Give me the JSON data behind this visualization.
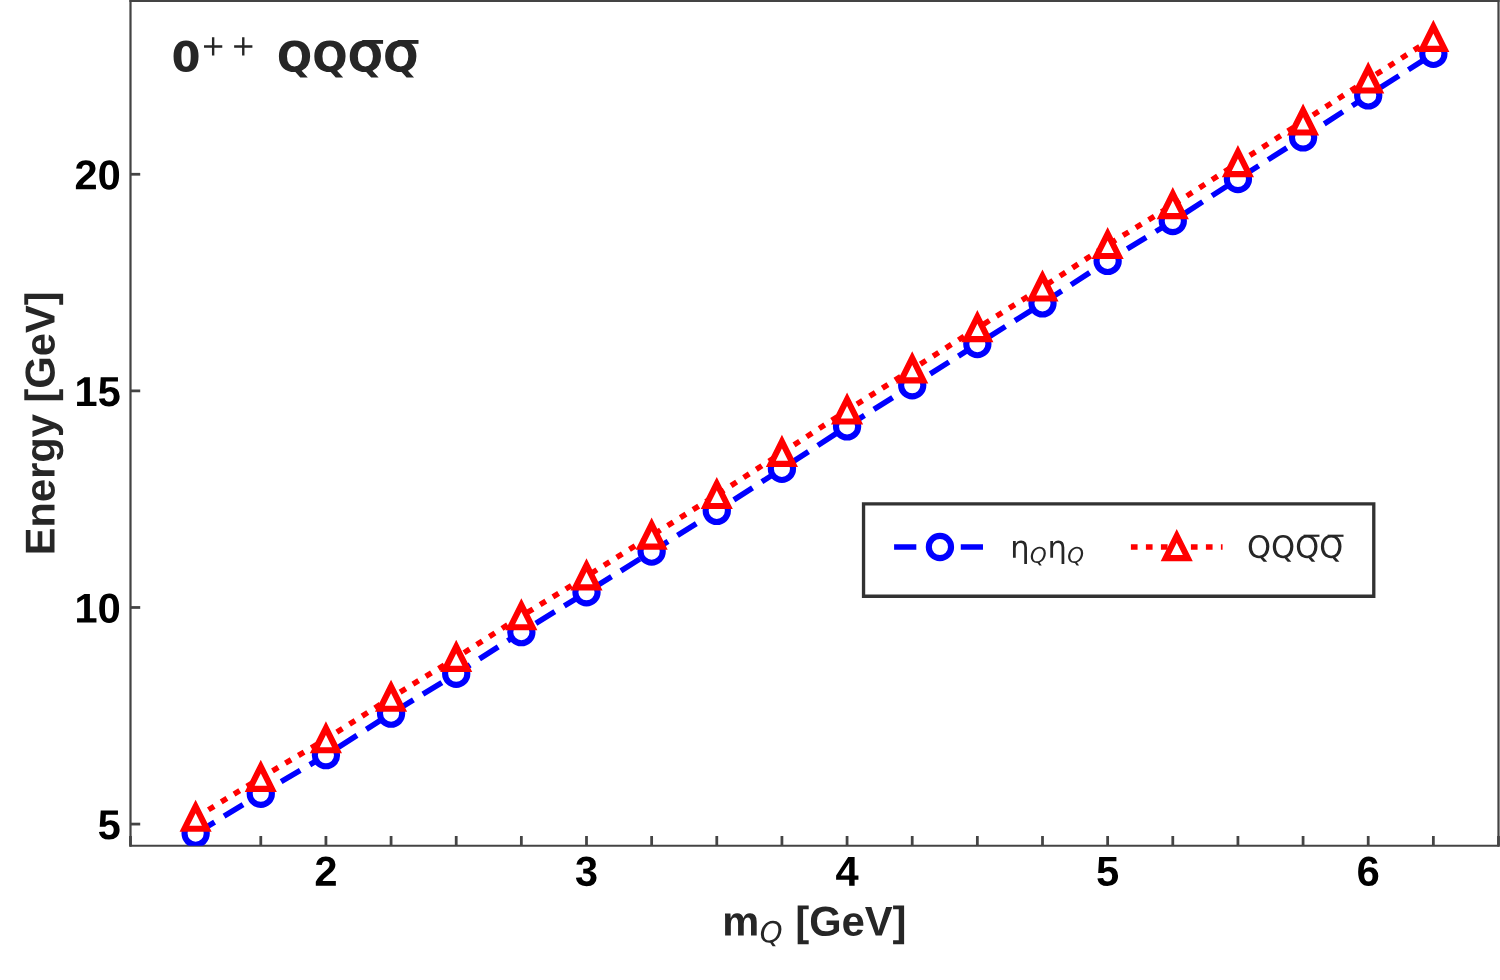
{
  "chart_data": {
    "type": "line",
    "xlabel": "m$_{Q}$ [GeV]",
    "ylabel": "Energy [GeV]",
    "annotations": [
      "0$^{++}$ QQQ̅Q̅"
    ],
    "x": [
      1.5,
      1.75,
      2,
      2.25,
      2.5,
      2.75,
      3,
      3.25,
      3.5,
      3.75,
      4,
      4.25,
      4.5,
      4.75,
      5,
      5.25,
      5.5,
      5.75,
      6,
      6.25
    ],
    "series": [
      {
        "name": "η$_{Q}$η$_{Q}$",
        "color": "#0000ff",
        "marker": "circle",
        "line_style": "dashed",
        "values": [
          4.78,
          5.7,
          6.59,
          7.55,
          8.47,
          9.43,
          10.35,
          11.29,
          12.23,
          13.2,
          14.18,
          15.13,
          16.08,
          17.02,
          18.0,
          18.92,
          19.89,
          20.85,
          21.82,
          22.78
        ]
      },
      {
        "name": "QQQ̅Q̅",
        "color": "#ff0000",
        "marker": "triangle",
        "line_style": "dotted",
        "values": [
          5.15,
          6.07,
          6.96,
          7.92,
          8.84,
          9.8,
          10.72,
          11.66,
          12.6,
          13.57,
          14.55,
          15.5,
          16.45,
          17.39,
          18.37,
          19.29,
          20.26,
          21.22,
          22.19,
          23.15
        ]
      }
    ],
    "xlim": [
      1.25,
      6.5
    ],
    "ylim": [
      4.5,
      24
    ],
    "xticks": [
      {
        "value": 1.25,
        "label": null
      },
      {
        "value": 1.5,
        "label": null
      },
      {
        "value": 1.75,
        "label": null
      },
      2,
      {
        "value": 2.25,
        "label": null
      },
      {
        "value": 2.5,
        "label": null
      },
      {
        "value": 2.75,
        "label": null
      },
      3,
      {
        "value": 3.25,
        "label": null
      },
      {
        "value": 3.5,
        "label": null
      },
      {
        "value": 3.75,
        "label": null
      },
      4,
      {
        "value": 4.25,
        "label": null
      },
      {
        "value": 4.5,
        "label": null
      },
      {
        "value": 4.75,
        "label": null
      },
      5,
      {
        "value": 5.25,
        "label": null
      },
      {
        "value": 5.5,
        "label": null
      },
      {
        "value": 5.75,
        "label": null
      },
      6,
      {
        "value": 6.25,
        "label": null
      },
      {
        "value": 6.5,
        "label": null
      }
    ],
    "yticks": [
      5,
      10,
      15,
      20
    ],
    "grid": false,
    "legend": "right"
  }
}
